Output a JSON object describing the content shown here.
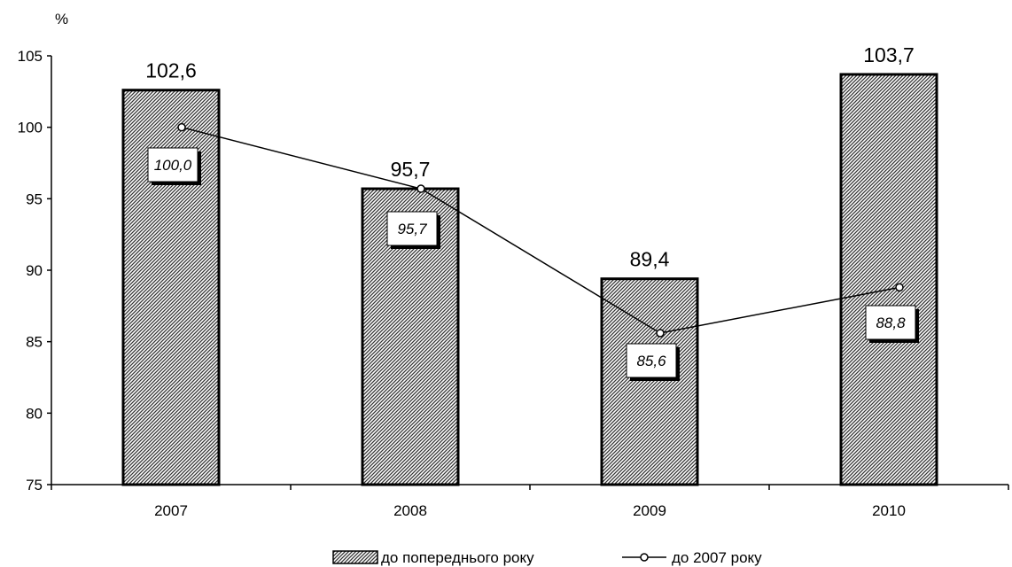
{
  "chart_data": {
    "type": "bar",
    "y_unit": "%",
    "categories": [
      "2007",
      "2008",
      "2009",
      "2010"
    ],
    "ylim": [
      75,
      105
    ],
    "yticks": [
      75,
      80,
      85,
      90,
      95,
      100,
      105
    ],
    "ytick_labels": [
      "75",
      "80",
      "85",
      "90",
      "95",
      "100",
      "105"
    ],
    "grid": false,
    "legend_position": "bottom-center",
    "series": [
      {
        "name": "до попереднього року",
        "kind": "bar",
        "pattern": "diagonal-hatch",
        "values": [
          102.6,
          95.7,
          89.4,
          103.7
        ],
        "labels": [
          "102,6",
          "95,7",
          "89,4",
          "103,7"
        ]
      },
      {
        "name": "до 2007 року",
        "kind": "line",
        "marker": "open-circle",
        "values": [
          100.0,
          95.7,
          85.6,
          88.8
        ],
        "labels": [
          "100,0",
          "95,7",
          "85,6",
          "88,8"
        ]
      }
    ]
  }
}
